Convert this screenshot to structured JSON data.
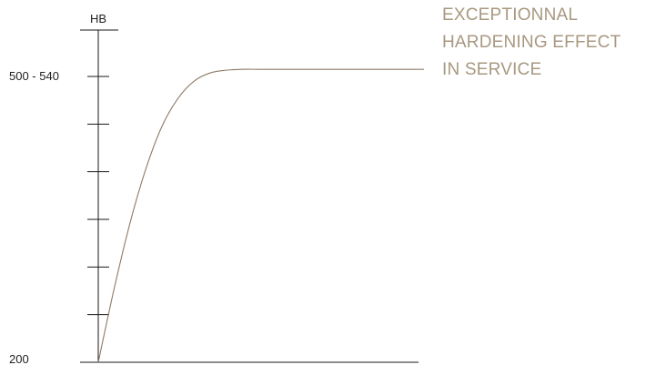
{
  "chart_data": {
    "type": "line",
    "title": "",
    "xlabel": "",
    "ylabel": "HB",
    "y_tick_labels": [
      {
        "label": "500 - 540",
        "value": 520
      },
      {
        "label": "200",
        "value": 200
      }
    ],
    "ylim": [
      200,
      540
    ],
    "grid": false,
    "series": [
      {
        "curve": "hardening (rises then plateaus)",
        "x": [
          0,
          0.05,
          0.1,
          0.15,
          0.2,
          0.25,
          0.3,
          0.35,
          0.4,
          0.45,
          0.5,
          0.55,
          0.6,
          1.0
        ],
        "y": [
          200,
          283,
          357,
          418,
          465,
          496,
          515,
          524,
          527,
          528,
          528,
          528,
          528,
          528
        ]
      }
    ],
    "annotation": {
      "lines": [
        "EXCEPTIONNAL",
        "HARDENING EFFECT",
        "IN SERVICE"
      ]
    },
    "colors": {
      "curve": "#8c7b68",
      "annotation": "#a89880",
      "axis": "#1a1a1a"
    }
  }
}
